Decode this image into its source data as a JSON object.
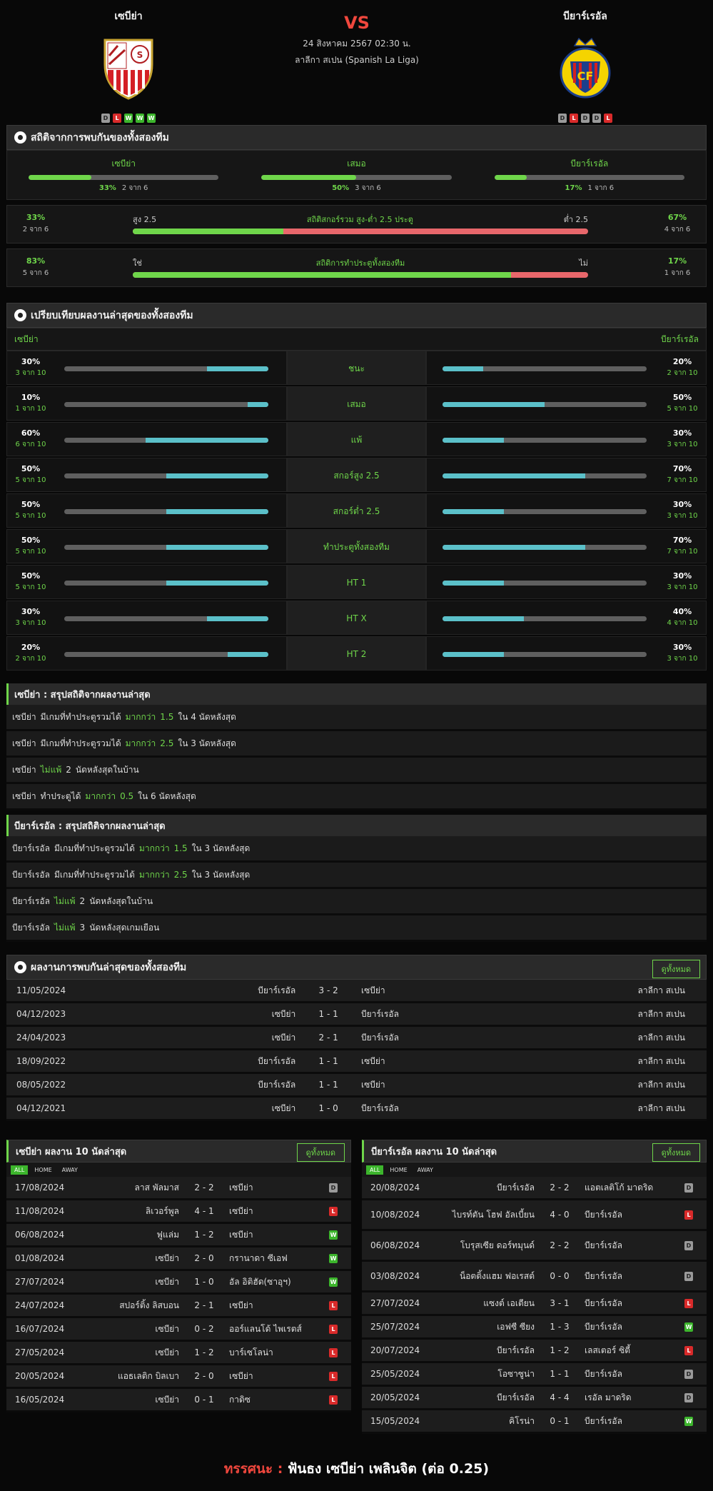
{
  "header": {
    "home": "เซบีย่า",
    "away": "บียาร์เรอัล",
    "vs": "VS",
    "date": "24 สิงหาคม 2567 02:30 น.",
    "league": "ลาลีกา สเปน (Spanish La Liga)",
    "home_form": [
      "D",
      "L",
      "W",
      "W",
      "W"
    ],
    "away_form": [
      "D",
      "L",
      "D",
      "D",
      "L"
    ]
  },
  "h2h_stats": {
    "title": "สถิติจากการพบกันของทั้งสองทีม",
    "cells": [
      {
        "label": "เซบีย่า",
        "pct": "33%",
        "frac": "2 จาก 6",
        "value": 33
      },
      {
        "label": "เสมอ",
        "pct": "50%",
        "frac": "3 จาก 6",
        "value": 50
      },
      {
        "label": "บียาร์เรอัล",
        "pct": "17%",
        "frac": "1 จาก 6",
        "value": 17
      }
    ],
    "ou": {
      "left_pct": "33%",
      "left_frac": "2 จาก 6",
      "over": "สูง 2.5",
      "title": "สถิติสกอร์รวม สูง-ต่ำ 2.5 ประตู",
      "under": "ต่ำ 2.5",
      "right_pct": "67%",
      "right_frac": "4 จาก 6",
      "value": 33
    },
    "btts": {
      "left_pct": "83%",
      "left_frac": "5 จาก 6",
      "yes": "ใช่",
      "title": "สถิติการทำประตูทั้งสองทีม",
      "no": "ไม่",
      "right_pct": "17%",
      "right_frac": "1 จาก 6",
      "value": 83
    }
  },
  "compare": {
    "title": "เปรียบเทียบผลงานล่าสุดของทั้งสองทีม",
    "home": "เซบีย่า",
    "away": "บียาร์เรอัล",
    "rows": [
      {
        "label": "ชนะ",
        "hp": "30%",
        "hf": "3 จาก 10",
        "hv": 30,
        "ap": "20%",
        "af": "2 จาก 10",
        "av": 20
      },
      {
        "label": "เสมอ",
        "hp": "10%",
        "hf": "1 จาก 10",
        "hv": 10,
        "ap": "50%",
        "af": "5 จาก 10",
        "av": 50
      },
      {
        "label": "แพ้",
        "hp": "60%",
        "hf": "6 จาก 10",
        "hv": 60,
        "ap": "30%",
        "af": "3 จาก 10",
        "av": 30
      },
      {
        "label": "สกอร์สูง 2.5",
        "hp": "50%",
        "hf": "5 จาก 10",
        "hv": 50,
        "ap": "70%",
        "af": "7 จาก 10",
        "av": 70
      },
      {
        "label": "สกอร์ต่ำ 2.5",
        "hp": "50%",
        "hf": "5 จาก 10",
        "hv": 50,
        "ap": "30%",
        "af": "3 จาก 10",
        "av": 30
      },
      {
        "label": "ทำประตูทั้งสองทีม",
        "hp": "50%",
        "hf": "5 จาก 10",
        "hv": 50,
        "ap": "70%",
        "af": "7 จาก 10",
        "av": 70
      },
      {
        "label": "HT 1",
        "hp": "50%",
        "hf": "5 จาก 10",
        "hv": 50,
        "ap": "30%",
        "af": "3 จาก 10",
        "av": 30
      },
      {
        "label": "HT X",
        "hp": "30%",
        "hf": "3 จาก 10",
        "hv": 30,
        "ap": "40%",
        "af": "4 จาก 10",
        "av": 40
      },
      {
        "label": "HT 2",
        "hp": "20%",
        "hf": "2 จาก 10",
        "hv": 20,
        "ap": "30%",
        "af": "3 จาก 10",
        "av": 30
      }
    ]
  },
  "summary_home": {
    "title": "เซบีย่า : สรุปสถิติจากผลงานล่าสุด",
    "rows": [
      [
        {
          "t": "เซบีย่า"
        },
        {
          "t": "มีเกมที่ทำประตูรวมได้"
        },
        {
          "t": "มากกว่า",
          "g": true
        },
        {
          "t": "1.5",
          "g": true
        },
        {
          "t": "ใน 4 นัดหลังสุด"
        }
      ],
      [
        {
          "t": "เซบีย่า"
        },
        {
          "t": "มีเกมที่ทำประตูรวมได้"
        },
        {
          "t": "มากกว่า",
          "g": true
        },
        {
          "t": "2.5",
          "g": true
        },
        {
          "t": "ใน 3 นัดหลังสุด"
        }
      ],
      [
        {
          "t": "เซบีย่า"
        },
        {
          "t": "ไม่แพ้",
          "g": true
        },
        {
          "t": "2"
        },
        {
          "t": "นัดหลังสุดในบ้าน"
        }
      ],
      [
        {
          "t": "เซบีย่า"
        },
        {
          "t": "ทำประตูได้"
        },
        {
          "t": "มากกว่า",
          "g": true
        },
        {
          "t": "0.5",
          "g": true
        },
        {
          "t": "ใน 6 นัดหลังสุด"
        }
      ]
    ]
  },
  "summary_away": {
    "title": "บียาร์เรอัล : สรุปสถิติจากผลงานล่าสุด",
    "rows": [
      [
        {
          "t": "บียาร์เรอัล"
        },
        {
          "t": "มีเกมที่ทำประตูรวมได้"
        },
        {
          "t": "มากกว่า",
          "g": true
        },
        {
          "t": "1.5",
          "g": true
        },
        {
          "t": "ใน 3 นัดหลังสุด"
        }
      ],
      [
        {
          "t": "บียาร์เรอัล"
        },
        {
          "t": "มีเกมที่ทำประตูรวมได้"
        },
        {
          "t": "มากกว่า",
          "g": true
        },
        {
          "t": "2.5",
          "g": true
        },
        {
          "t": "ใน 3 นัดหลังสุด"
        }
      ],
      [
        {
          "t": "บียาร์เรอัล"
        },
        {
          "t": "ไม่แพ้",
          "g": true
        },
        {
          "t": "2"
        },
        {
          "t": "นัดหลังสุดในบ้าน"
        }
      ],
      [
        {
          "t": "บียาร์เรอัล"
        },
        {
          "t": "ไม่แพ้",
          "g": true
        },
        {
          "t": "3"
        },
        {
          "t": "นัดหลังสุดเกมเยือน"
        }
      ]
    ]
  },
  "h2h_results": {
    "title": "ผลงานการพบกันล่าสุดของทั้งสองทีม",
    "view_all": "ดูทั้งหมด",
    "rows": [
      {
        "date": "11/05/2024",
        "home": "บียาร์เรอัล",
        "score": "3 - 2",
        "away": "เซบีย่า",
        "league": "ลาลีกา สเปน"
      },
      {
        "date": "04/12/2023",
        "home": "เซบีย่า",
        "score": "1 - 1",
        "away": "บียาร์เรอัล",
        "league": "ลาลีกา สเปน"
      },
      {
        "date": "24/04/2023",
        "home": "เซบีย่า",
        "score": "2 - 1",
        "away": "บียาร์เรอัล",
        "league": "ลาลีกา สเปน"
      },
      {
        "date": "18/09/2022",
        "home": "บียาร์เรอัล",
        "score": "1 - 1",
        "away": "เซบีย่า",
        "league": "ลาลีกา สเปน"
      },
      {
        "date": "08/05/2022",
        "home": "บียาร์เรอัล",
        "score": "1 - 1",
        "away": "เซบีย่า",
        "league": "ลาลีกา สเปน"
      },
      {
        "date": "04/12/2021",
        "home": "เซบีย่า",
        "score": "1 - 0",
        "away": "บียาร์เรอัล",
        "league": "ลาลีกา สเปน"
      }
    ]
  },
  "last10_home": {
    "title": "เซบีย่า ผลงาน 10 นัดล่าสุด",
    "view_all": "ดูทั้งหมด",
    "tabs": [
      "ALL",
      "HOME",
      "AWAY"
    ],
    "rows": [
      {
        "date": "17/08/2024",
        "home": "ลาส พัลมาส",
        "score": "2 - 2",
        "away": "เซบีย่า",
        "r": "D"
      },
      {
        "date": "11/08/2024",
        "home": "ลิเวอร์พูล",
        "score": "4 - 1",
        "away": "เซบีย่า",
        "r": "L"
      },
      {
        "date": "06/08/2024",
        "home": "ฟูแล่ม",
        "score": "1 - 2",
        "away": "เซบีย่า",
        "r": "W"
      },
      {
        "date": "01/08/2024",
        "home": "เซบีย่า",
        "score": "2 - 0",
        "away": "กรานาดา ซีเอฟ",
        "r": "W"
      },
      {
        "date": "27/07/2024",
        "home": "เซบีย่า",
        "score": "1 - 0",
        "away": "อัล อิติฮัด(ซาอุฯ)",
        "r": "W"
      },
      {
        "date": "24/07/2024",
        "home": "สปอร์ติ้ง ลิสบอน",
        "score": "2 - 1",
        "away": "เซบีย่า",
        "r": "L"
      },
      {
        "date": "16/07/2024",
        "home": "เซบีย่า",
        "score": "0 - 2",
        "away": "ออร์แลนโด้ ไพเรตส์",
        "r": "L"
      },
      {
        "date": "27/05/2024",
        "home": "เซบีย่า",
        "score": "1 - 2",
        "away": "บาร์เซโลน่า",
        "r": "L"
      },
      {
        "date": "20/05/2024",
        "home": "แอธเลติก บิลเบา",
        "score": "2 - 0",
        "away": "เซบีย่า",
        "r": "L"
      },
      {
        "date": "16/05/2024",
        "home": "เซบีย่า",
        "score": "0 - 1",
        "away": "กาดิซ",
        "r": "L"
      }
    ]
  },
  "last10_away": {
    "title": "บียาร์เรอัล ผลงาน 10 นัดล่าสุด",
    "view_all": "ดูทั้งหมด",
    "tabs": [
      "ALL",
      "HOME",
      "AWAY"
    ],
    "rows": [
      {
        "date": "20/08/2024",
        "home": "บียาร์เรอัล",
        "score": "2 - 2",
        "away": "แอตเลติโก้ มาดริด",
        "r": "D"
      },
      {
        "date": "10/08/2024",
        "home": "ไบรท์ตัน โฮฟ อัลเบี้ยน",
        "score": "4 - 0",
        "away": "บียาร์เรอัล",
        "r": "L"
      },
      {
        "date": "06/08/2024",
        "home": "โบรุสเซีย ดอร์ทมุนด์",
        "score": "2 - 2",
        "away": "บียาร์เรอัล",
        "r": "D"
      },
      {
        "date": "03/08/2024",
        "home": "น็อตติ้งแฮม ฟอเรสต์",
        "score": "0 - 0",
        "away": "บียาร์เรอัล",
        "r": "D"
      },
      {
        "date": "27/07/2024",
        "home": "แซงต์ เอเตียน",
        "score": "3 - 1",
        "away": "บียาร์เรอัล",
        "r": "L"
      },
      {
        "date": "25/07/2024",
        "home": "เอฟซี ซียง",
        "score": "1 - 3",
        "away": "บียาร์เรอัล",
        "r": "W"
      },
      {
        "date": "20/07/2024",
        "home": "บียาร์เรอัล",
        "score": "1 - 2",
        "away": "เลสเตอร์ ซิตี้",
        "r": "L"
      },
      {
        "date": "25/05/2024",
        "home": "โอซาซูน่า",
        "score": "1 - 1",
        "away": "บียาร์เรอัล",
        "r": "D"
      },
      {
        "date": "20/05/2024",
        "home": "บียาร์เรอัล",
        "score": "4 - 4",
        "away": "เรอัล มาดริด",
        "r": "D"
      },
      {
        "date": "15/05/2024",
        "home": "คิโรน่า",
        "score": "0 - 1",
        "away": "บียาร์เรอัล",
        "r": "W"
      }
    ]
  },
  "footer": {
    "label": "ทรรศนะ :",
    "text": "ฟันธง เซบีย่า เพลินจิต (ต่อ 0.25)"
  }
}
